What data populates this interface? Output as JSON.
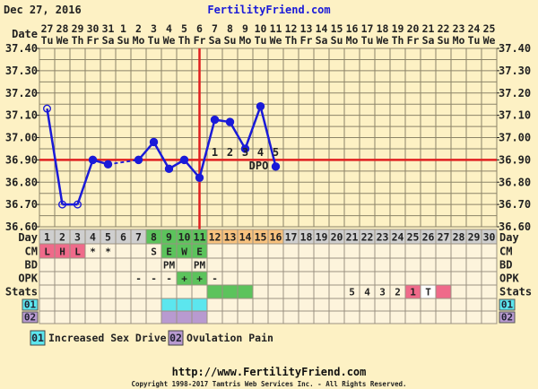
{
  "header": {
    "date": "Dec 27, 2016",
    "site": "FertilityFriend.com",
    "date_label": "Date",
    "day_label": "Day"
  },
  "colors": {
    "background": "#fdf1c4",
    "temp_line": "#1a1ad8",
    "coverline": "#e02020",
    "day_default": "#cfcfcf",
    "day_fertile": "#5cc35c",
    "day_luteal": "#f8c27e",
    "cm_red": "#ef6a8a",
    "stats_green": "#5cc35c",
    "stats_pink": "#ef6a8a",
    "cell": "#fdf4dc",
    "symptom_01": "#5ce6ee",
    "symptom_02": "#b89ad0"
  },
  "dates": [
    "27",
    "28",
    "29",
    "30",
    "31",
    "1",
    "2",
    "3",
    "4",
    "5",
    "6",
    "7",
    "8",
    "9",
    "10",
    "11",
    "12",
    "13",
    "14",
    "15",
    "16",
    "17",
    "18",
    "19",
    "20",
    "21",
    "22",
    "23",
    "24",
    "25"
  ],
  "weekdays": [
    "Tu",
    "We",
    "Th",
    "Fr",
    "Sa",
    "Su",
    "Mo",
    "Tu",
    "We",
    "Th",
    "Fr",
    "Sa",
    "Su",
    "Mo",
    "Tu",
    "We",
    "Th",
    "Fr",
    "Sa",
    "Su",
    "Mo",
    "Tu",
    "We",
    "Th",
    "Fr",
    "Sa",
    "Su",
    "Mo",
    "Tu",
    "We"
  ],
  "rows": {
    "labels": [
      "CM",
      "BD",
      "OPK",
      "Stats"
    ],
    "day_colors": [
      "d",
      "d",
      "d",
      "d",
      "d",
      "d",
      "d",
      "f",
      "f",
      "f",
      "f",
      "l",
      "l",
      "l",
      "l",
      "l",
      "d",
      "d",
      "d",
      "d",
      "d",
      "d",
      "d",
      "d",
      "d",
      "d",
      "d",
      "d",
      "d",
      "d"
    ],
    "cm": [
      "L",
      "H",
      "L",
      "*",
      "*",
      "",
      "",
      "S",
      "E",
      "W",
      "E",
      "",
      "",
      "",
      "",
      "",
      "",
      "",
      "",
      "",
      "",
      "",
      "",
      "",
      "",
      "",
      "",
      "",
      "",
      ""
    ],
    "cm_colors": [
      "r",
      "r",
      "r",
      "",
      "",
      "",
      "",
      "",
      "g",
      "g",
      "g",
      "",
      "",
      "",
      "",
      "",
      "",
      "",
      "",
      "",
      "",
      "",
      "",
      "",
      "",
      "",
      "",
      "",
      "",
      ""
    ],
    "bd": [
      "",
      "",
      "",
      "",
      "",
      "",
      "",
      "",
      "PM",
      "",
      "PM",
      "",
      "",
      "",
      "",
      "",
      "",
      "",
      "",
      "",
      "",
      "",
      "",
      "",
      "",
      "",
      "",
      "",
      "",
      ""
    ],
    "opk": [
      "",
      "",
      "",
      "",
      "",
      "",
      "-",
      "-",
      "-",
      "+",
      "+",
      "-",
      "",
      "",
      "",
      "",
      "",
      "",
      "",
      "",
      "",
      "",
      "",
      "",
      "",
      "",
      "",
      "",
      "",
      ""
    ],
    "opk_colors": [
      "",
      "",
      "",
      "",
      "",
      "",
      "",
      "",
      "",
      "g",
      "g",
      "",
      "",
      "",
      "",
      "",
      "",
      "",
      "",
      "",
      "",
      "",
      "",
      "",
      "",
      "",
      "",
      "",
      "",
      ""
    ],
    "stats": [
      "",
      "",
      "",
      "",
      "",
      "",
      "",
      "",
      "",
      "",
      "",
      "",
      "",
      "",
      "",
      "",
      "",
      "",
      "",
      "",
      "5",
      "4",
      "3",
      "2",
      "1",
      "T",
      "",
      "",
      "",
      ""
    ],
    "stats_colors": [
      "",
      "",
      "",
      "",
      "",
      "",
      "",
      "",
      "",
      "",
      "",
      "g",
      "g",
      "g",
      "",
      "",
      "",
      "",
      "",
      "",
      "",
      "",
      "",
      "",
      "p",
      "w",
      "p",
      "",
      "",
      ""
    ],
    "s01": [
      9,
      10,
      11
    ],
    "s02": [
      9,
      10,
      11
    ]
  },
  "symptoms": [
    {
      "code": "01",
      "label": "Increased Sex Drive",
      "color": "#5ce6ee"
    },
    {
      "code": "02",
      "label": "Ovulation Pain",
      "color": "#b89ad0"
    }
  ],
  "chart_data": {
    "type": "line",
    "x_days": [
      1,
      2,
      3,
      4,
      5,
      6,
      7,
      8,
      9,
      10,
      11,
      12,
      13,
      14,
      15,
      16
    ],
    "temps": [
      37.13,
      36.7,
      36.7,
      36.9,
      36.88,
      null,
      36.9,
      36.98,
      36.86,
      36.9,
      36.82,
      37.08,
      37.07,
      36.95,
      37.14,
      36.87
    ],
    "open_points": [
      1,
      2,
      3
    ],
    "dashed_gap_days": [
      5,
      7
    ],
    "ylim": [
      36.6,
      37.4
    ],
    "yticks": [
      "37.40",
      "37.30",
      "37.20",
      "37.10",
      "37.00",
      "36.90",
      "36.80",
      "36.70",
      "36.60"
    ],
    "coverline": 36.9,
    "ovulation_day": 11,
    "dpo_labels": [
      "1",
      "2",
      "3",
      "4",
      "5"
    ],
    "dpo_text": "DPO",
    "days_total": 30
  },
  "footer": {
    "url": "http://www.FertilityFriend.com",
    "copyright": "Copyright 1998-2017 Tamtris Web Services Inc. - All Rights Reserved."
  }
}
